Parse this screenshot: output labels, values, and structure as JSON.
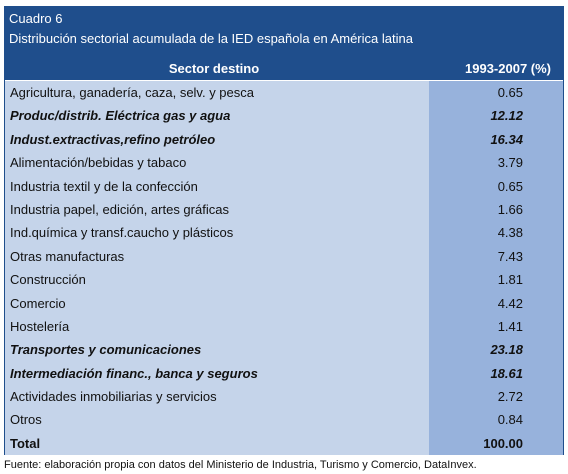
{
  "table": {
    "number": "Cuadro 6",
    "title": "Distribución sectorial acumulada de la IED española en América latina",
    "headers": [
      "Sector destino",
      "1993-2007 (%)"
    ],
    "rows": [
      {
        "sector": "Agricultura, ganadería, caza, selv. y pesca",
        "value": "0.65",
        "style": "normal"
      },
      {
        "sector": "Produc/distrib. Eléctrica gas y agua",
        "value": "12.12",
        "style": "em"
      },
      {
        "sector": "Indust.extractivas,refino petróleo",
        "value": "16.34",
        "style": "em"
      },
      {
        "sector": "Alimentación/bebidas y tabaco",
        "value": "3.79",
        "style": "normal"
      },
      {
        "sector": "Industria textil y de la confección",
        "value": "0.65",
        "style": "normal"
      },
      {
        "sector": "Industria papel, edición, artes gráficas",
        "value": "1.66",
        "style": "normal"
      },
      {
        "sector": "Ind.química y transf.caucho y plásticos",
        "value": "4.38",
        "style": "normal"
      },
      {
        "sector": "Otras manufacturas",
        "value": "7.43",
        "style": "normal"
      },
      {
        "sector": "Construcción",
        "value": "1.81",
        "style": "normal"
      },
      {
        "sector": "Comercio",
        "value": "4.42",
        "style": "normal"
      },
      {
        "sector": "Hostelería",
        "value": "1.41",
        "style": "normal"
      },
      {
        "sector": "Transportes y comunicaciones",
        "value": "23.18",
        "style": "em"
      },
      {
        "sector": "Intermediación financ., banca y seguros",
        "value": "18.61",
        "style": "em"
      },
      {
        "sector": "Actividades inmobiliarias y servicios",
        "value": "2.72",
        "style": "normal"
      },
      {
        "sector": "Otros",
        "value": "0.84",
        "style": "normal"
      },
      {
        "sector": "Total",
        "value": "100.00",
        "style": "total"
      }
    ]
  },
  "source": "Fuente: elaboración propia con datos del Ministerio de Industria, Turismo y Comercio, DataInvex.",
  "colors": {
    "header_bg": "#1f4e8c",
    "sector_cell_bg": "#c5d4ea",
    "value_cell_bg": "#97b2dc"
  }
}
